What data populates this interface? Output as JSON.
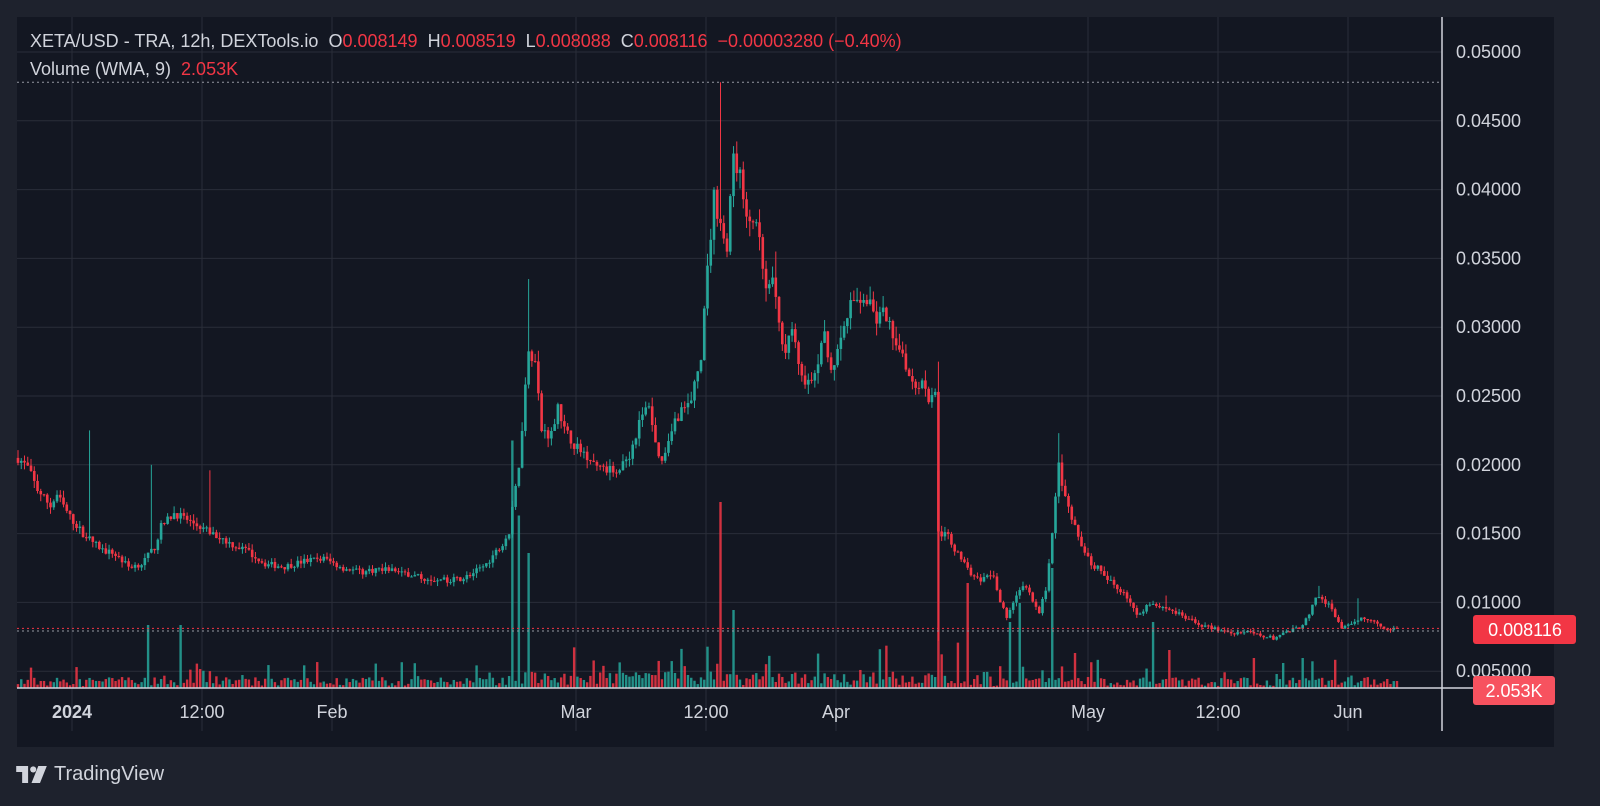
{
  "header": {
    "symbol": "XETA/USD",
    "venue": " - TRA, 12h, DEXTools.io",
    "o_label": "O",
    "o_value": "0.008149",
    "h_label": "H",
    "h_value": "0.008519",
    "l_label": "L",
    "l_value": "0.008088",
    "c_label": "C",
    "c_value": "0.008116",
    "change": "−0.00003280 (−0.40%)",
    "volume_label": "Volume (WMA, 9)",
    "volume_value": "2.053K"
  },
  "price_badge": "0.008116",
  "volume_badge": "2.053K",
  "footer": {
    "brand": "TradingView"
  },
  "colors": {
    "up": "#26a69a",
    "down": "#f23645",
    "background": "#131722",
    "panel": "#1e222d",
    "grid": "#2a2e39",
    "text": "#d1d4dc"
  },
  "chart_data": {
    "type": "candlestick",
    "title": "XETA/USD - TRA, 12h, DEXTools.io",
    "interval": "12h",
    "x_ticks": [
      "2024",
      "12:00",
      "Feb",
      "Mar",
      "12:00",
      "Apr",
      "May",
      "12:00",
      "Jun"
    ],
    "y_ticks": [
      "0.05000",
      "0.04500",
      "0.04000",
      "0.03500",
      "0.03000",
      "0.02500",
      "0.02000",
      "0.01500",
      "0.01000",
      "0.005000"
    ],
    "ylim": [
      0.0047,
      0.0515
    ],
    "last_price": 0.008116,
    "session_high": 0.0478,
    "session_low": 0.0072,
    "price_path": [
      [
        0,
        0.0205
      ],
      [
        3,
        0.0198
      ],
      [
        6,
        0.0182
      ],
      [
        10,
        0.017
      ],
      [
        12,
        0.0178
      ],
      [
        16,
        0.0162
      ],
      [
        20,
        0.015
      ],
      [
        26,
        0.0138
      ],
      [
        30,
        0.0135
      ],
      [
        34,
        0.0126
      ],
      [
        38,
        0.0128
      ],
      [
        42,
        0.014
      ],
      [
        44,
        0.0155
      ],
      [
        48,
        0.0165
      ],
      [
        52,
        0.016
      ],
      [
        56,
        0.0155
      ],
      [
        60,
        0.015
      ],
      [
        66,
        0.0142
      ],
      [
        70,
        0.0138
      ],
      [
        76,
        0.0128
      ],
      [
        82,
        0.0126
      ],
      [
        88,
        0.013
      ],
      [
        94,
        0.0132
      ],
      [
        100,
        0.0125
      ],
      [
        106,
        0.0122
      ],
      [
        112,
        0.0125
      ],
      [
        118,
        0.0122
      ],
      [
        124,
        0.0118
      ],
      [
        130,
        0.0116
      ],
      [
        136,
        0.0117
      ],
      [
        140,
        0.0121
      ],
      [
        144,
        0.0128
      ],
      [
        148,
        0.014
      ],
      [
        151,
        0.015
      ],
      [
        154,
        0.02
      ],
      [
        157,
        0.0285
      ],
      [
        159,
        0.0275
      ],
      [
        161,
        0.0225
      ],
      [
        164,
        0.0222
      ],
      [
        166,
        0.0245
      ],
      [
        168,
        0.0225
      ],
      [
        172,
        0.0212
      ],
      [
        176,
        0.0205
      ],
      [
        180,
        0.0196
      ],
      [
        184,
        0.0196
      ],
      [
        188,
        0.0207
      ],
      [
        191,
        0.023
      ],
      [
        194,
        0.0245
      ],
      [
        196,
        0.0215
      ],
      [
        198,
        0.0202
      ],
      [
        201,
        0.0228
      ],
      [
        204,
        0.024
      ],
      [
        207,
        0.0245
      ],
      [
        210,
        0.028
      ],
      [
        212,
        0.034
      ],
      [
        214,
        0.0395
      ],
      [
        216,
        0.0375
      ],
      [
        218,
        0.0355
      ],
      [
        220,
        0.0425
      ],
      [
        222,
        0.041
      ],
      [
        224,
        0.0375
      ],
      [
        226,
        0.038
      ],
      [
        228,
        0.036
      ],
      [
        230,
        0.0325
      ],
      [
        232,
        0.0335
      ],
      [
        234,
        0.03
      ],
      [
        236,
        0.0285
      ],
      [
        238,
        0.03
      ],
      [
        240,
        0.027
      ],
      [
        242,
        0.0262
      ],
      [
        244,
        0.0258
      ],
      [
        246,
        0.0275
      ],
      [
        248,
        0.0295
      ],
      [
        250,
        0.027
      ],
      [
        252,
        0.028
      ],
      [
        254,
        0.03
      ],
      [
        256,
        0.0315
      ],
      [
        258,
        0.032
      ],
      [
        260,
        0.0322
      ],
      [
        262,
        0.0315
      ],
      [
        264,
        0.0305
      ],
      [
        266,
        0.031
      ],
      [
        268,
        0.03
      ],
      [
        270,
        0.029
      ],
      [
        272,
        0.0282
      ],
      [
        274,
        0.0265
      ],
      [
        276,
        0.0258
      ],
      [
        278,
        0.0262
      ],
      [
        280,
        0.0248
      ],
      [
        282,
        0.0255
      ],
      [
        283,
        0.015
      ],
      [
        286,
        0.0148
      ],
      [
        288,
        0.0138
      ],
      [
        290,
        0.0132
      ],
      [
        292,
        0.0125
      ],
      [
        294,
        0.0118
      ],
      [
        296,
        0.0115
      ],
      [
        298,
        0.0118
      ],
      [
        300,
        0.012
      ],
      [
        302,
        0.01
      ],
      [
        304,
        0.009
      ],
      [
        306,
        0.01
      ],
      [
        308,
        0.011
      ],
      [
        310,
        0.0112
      ],
      [
        312,
        0.01
      ],
      [
        314,
        0.0092
      ],
      [
        316,
        0.011
      ],
      [
        318,
        0.015
      ],
      [
        320,
        0.02
      ],
      [
        322,
        0.0175
      ],
      [
        324,
        0.016
      ],
      [
        326,
        0.0148
      ],
      [
        328,
        0.0138
      ],
      [
        330,
        0.0128
      ],
      [
        332,
        0.0125
      ],
      [
        334,
        0.0118
      ],
      [
        336,
        0.0115
      ],
      [
        338,
        0.011
      ],
      [
        340,
        0.0108
      ],
      [
        342,
        0.01
      ],
      [
        344,
        0.009
      ],
      [
        346,
        0.0095
      ],
      [
        348,
        0.01
      ],
      [
        350,
        0.0098
      ],
      [
        354,
        0.0095
      ],
      [
        358,
        0.009
      ],
      [
        362,
        0.0085
      ],
      [
        366,
        0.0082
      ],
      [
        370,
        0.008
      ],
      [
        374,
        0.0078
      ],
      [
        378,
        0.0078
      ],
      [
        382,
        0.0076
      ],
      [
        386,
        0.0074
      ],
      [
        390,
        0.0078
      ],
      [
        394,
        0.0082
      ],
      [
        397,
        0.009
      ],
      [
        399,
        0.0105
      ],
      [
        401,
        0.0102
      ],
      [
        403,
        0.0098
      ],
      [
        405,
        0.009
      ],
      [
        407,
        0.0082
      ],
      [
        410,
        0.0083
      ],
      [
        413,
        0.009
      ],
      [
        416,
        0.0087
      ],
      [
        419,
        0.0083
      ],
      [
        422,
        0.008
      ],
      [
        424,
        0.0081
      ]
    ],
    "candle_count": 425
  }
}
